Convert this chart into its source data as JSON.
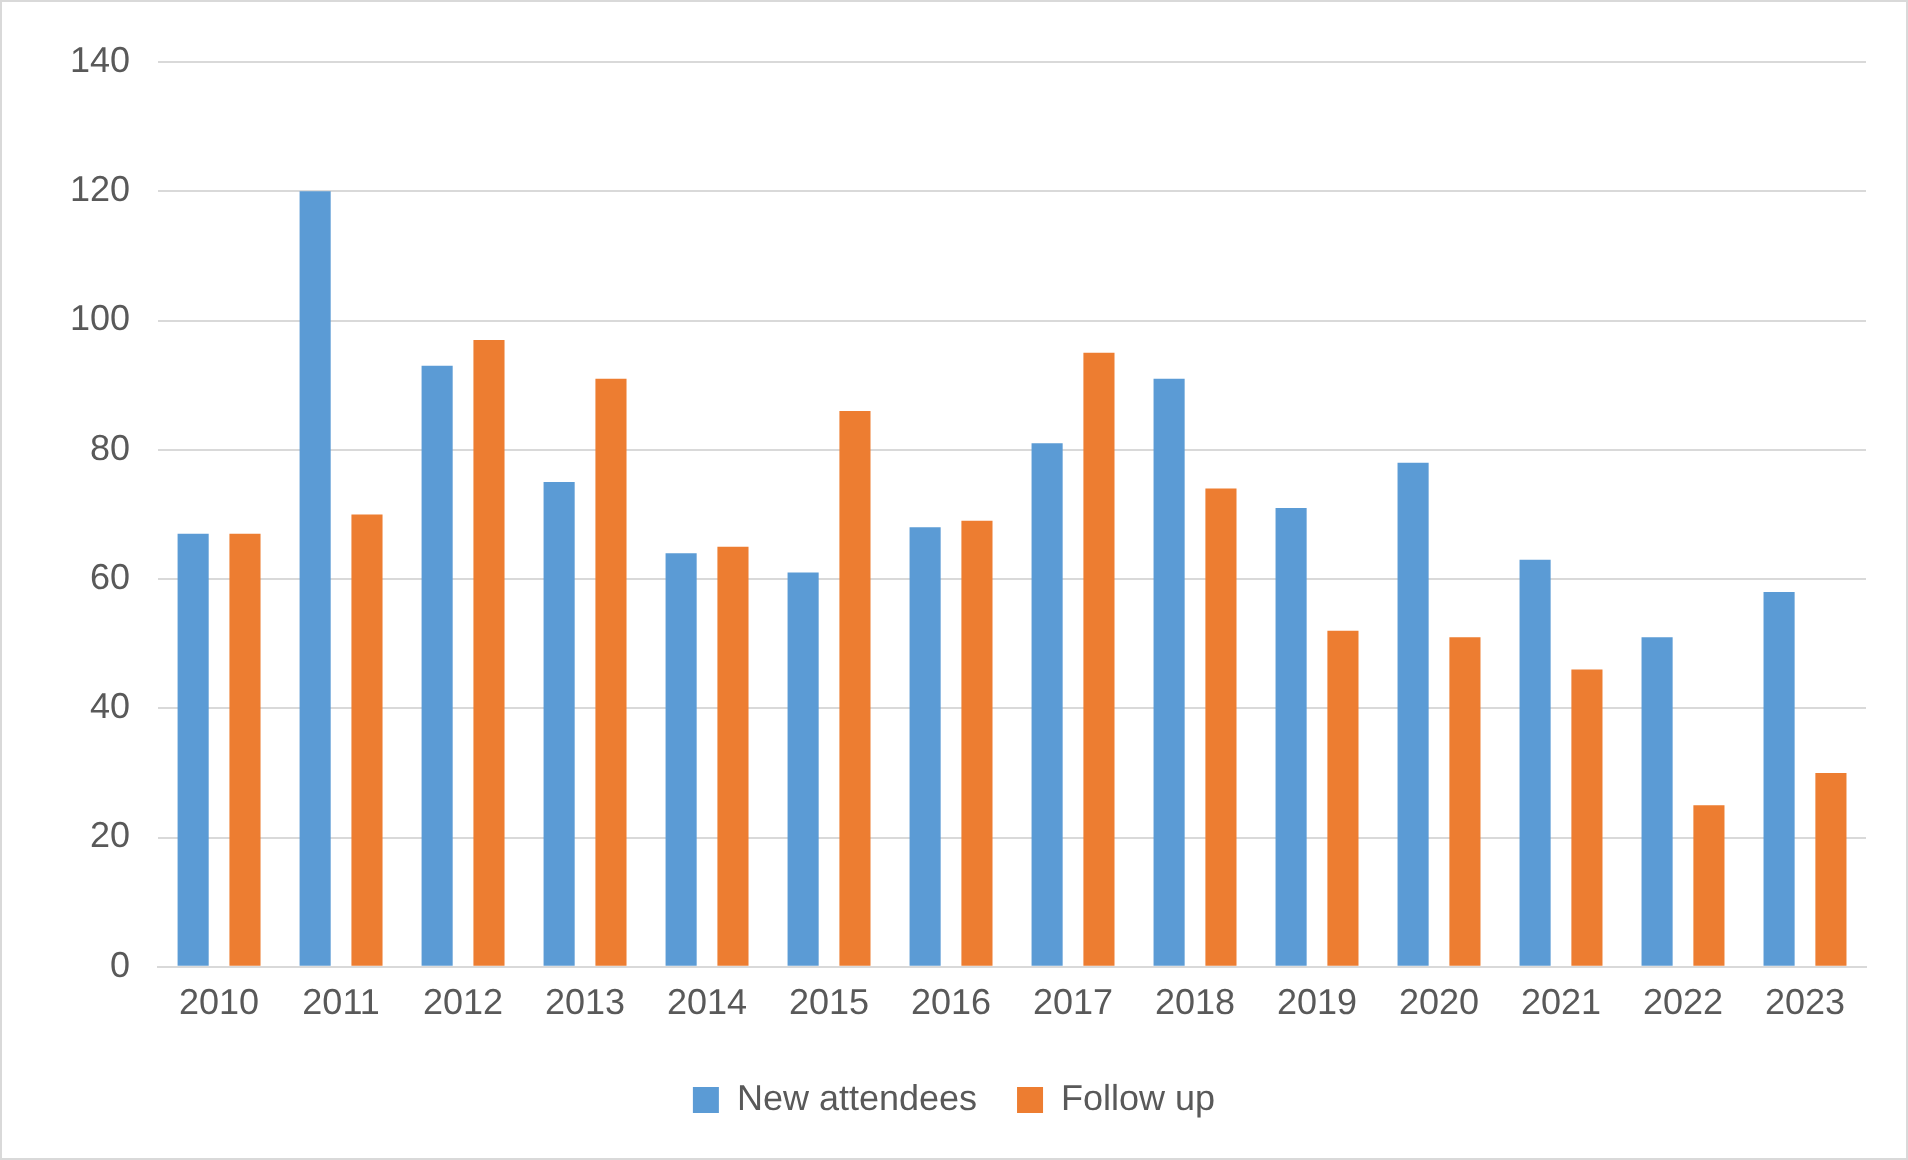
{
  "chart_data": {
    "type": "bar",
    "categories": [
      "2010",
      "2011",
      "2012",
      "2013",
      "2014",
      "2015",
      "2016",
      "2017",
      "2018",
      "2019",
      "2020",
      "2021",
      "2022",
      "2023"
    ],
    "series": [
      {
        "name": "New attendees",
        "color": "#5b9bd5",
        "values": [
          67,
          120,
          93,
          75,
          64,
          61,
          68,
          81,
          91,
          71,
          78,
          63,
          51,
          58
        ]
      },
      {
        "name": "Follow up",
        "color": "#ed7d31",
        "values": [
          67,
          70,
          97,
          91,
          65,
          86,
          69,
          95,
          74,
          52,
          51,
          46,
          25,
          30
        ]
      }
    ],
    "ylim": [
      0,
      140
    ],
    "yticks": [
      0,
      20,
      40,
      60,
      80,
      100,
      120,
      140
    ],
    "grid": "y",
    "legend": "bottom"
  }
}
